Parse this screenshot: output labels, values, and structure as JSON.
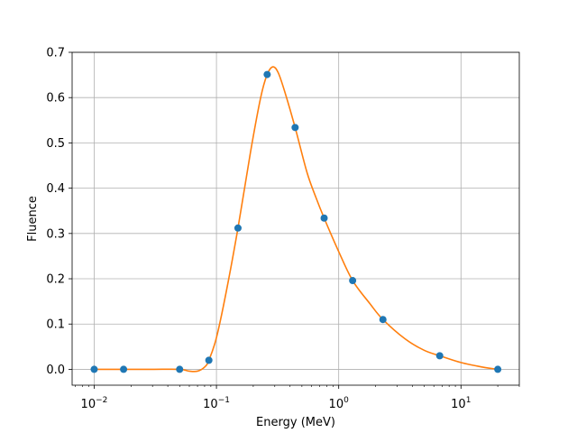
{
  "chart_data": {
    "type": "scatter",
    "title": "",
    "xlabel": "Energy (MeV)",
    "ylabel": "Fluence",
    "xscale": "log",
    "xlim": [
      0.0066,
      30
    ],
    "ylim": [
      -0.035,
      0.7
    ],
    "grid": true,
    "x_ticks": [
      {
        "value": 0.01,
        "base": "10",
        "exp": "−2"
      },
      {
        "value": 0.1,
        "base": "10",
        "exp": "−1"
      },
      {
        "value": 1,
        "base": "10",
        "exp": "0"
      },
      {
        "value": 10,
        "base": "10",
        "exp": "1"
      }
    ],
    "y_ticks": [
      {
        "value": 0.0,
        "label": "0.0"
      },
      {
        "value": 0.1,
        "label": "0.1"
      },
      {
        "value": 0.2,
        "label": "0.2"
      },
      {
        "value": 0.3,
        "label": "0.3"
      },
      {
        "value": 0.4,
        "label": "0.4"
      },
      {
        "value": 0.5,
        "label": "0.5"
      },
      {
        "value": 0.6,
        "label": "0.6"
      },
      {
        "value": 0.7,
        "label": "0.7"
      }
    ],
    "series": [
      {
        "kind": "points",
        "color": "#1f77b4",
        "x": [
          0.01,
          0.0174,
          0.05,
          0.0867,
          0.15,
          0.26,
          0.44,
          0.76,
          1.3,
          2.3,
          6.7,
          20
        ],
        "y": [
          0.0,
          0.0,
          0.0,
          0.02,
          0.312,
          0.651,
          0.534,
          0.334,
          0.196,
          0.11,
          0.03,
          0.0
        ]
      },
      {
        "kind": "curve",
        "color": "#ff7f0e",
        "x": [
          0.01,
          0.0174,
          0.03,
          0.05,
          0.06,
          0.07,
          0.08,
          0.0867,
          0.1,
          0.12,
          0.15,
          0.19,
          0.23,
          0.26,
          0.29,
          0.32,
          0.36,
          0.44,
          0.55,
          0.65,
          0.76,
          1.0,
          1.3,
          1.8,
          2.3,
          3.5,
          5.0,
          6.7,
          10,
          15,
          20
        ],
        "y": [
          0.0,
          0.0,
          0.0,
          0.0,
          -0.004,
          -0.004,
          0.005,
          0.02,
          0.07,
          0.17,
          0.312,
          0.48,
          0.6,
          0.651,
          0.668,
          0.655,
          0.615,
          0.534,
          0.435,
          0.38,
          0.334,
          0.26,
          0.196,
          0.145,
          0.11,
          0.067,
          0.042,
          0.03,
          0.015,
          0.005,
          0.0
        ]
      }
    ]
  }
}
